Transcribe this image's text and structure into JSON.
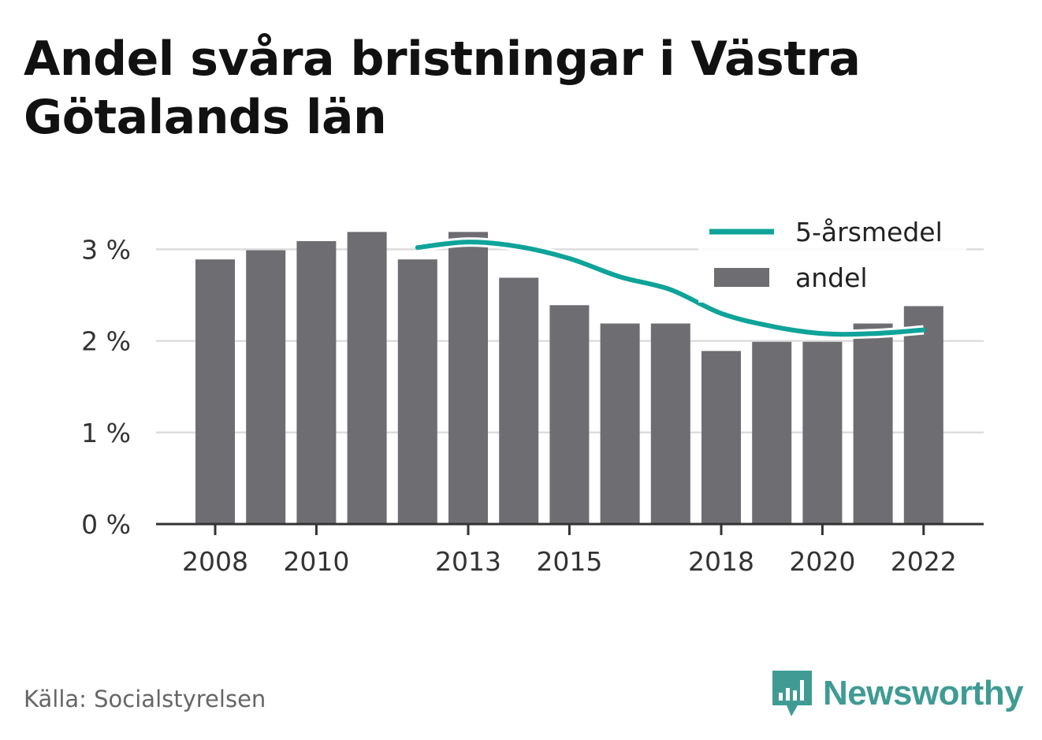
{
  "title": "Andel svåra bristningar i Västra Götalands län",
  "source": "Källa: Socialstyrelsen",
  "brand": {
    "name": "Newsworthy",
    "icon": "newsworthy-logo-icon",
    "color": "#3f9b94"
  },
  "colors": {
    "bar": "#6e6d72",
    "line": "#0fa399",
    "grid": "#dddddd",
    "axis": "#333333"
  },
  "chart_data": {
    "type": "bar",
    "x": [
      2008,
      2009,
      2010,
      2011,
      2012,
      2013,
      2014,
      2015,
      2016,
      2017,
      2018,
      2019,
      2020,
      2021,
      2022
    ],
    "x_tick_labels": [
      "2008",
      "2010",
      "2013",
      "2015",
      "2018",
      "2020",
      "2022"
    ],
    "y_tick_labels": [
      "0 %",
      "1 %",
      "2 %",
      "3 %"
    ],
    "ylim": [
      0,
      3.2
    ],
    "grid": true,
    "legend_position": "top-right",
    "series": [
      {
        "name": "andel",
        "type": "bar",
        "values": [
          2.89,
          2.99,
          3.09,
          3.19,
          2.89,
          3.19,
          2.69,
          2.39,
          2.19,
          2.19,
          1.89,
          1.99,
          1.99,
          2.19,
          2.38
        ]
      },
      {
        "name": "5-årsmedel",
        "type": "line",
        "values": [
          null,
          null,
          null,
          null,
          3.02,
          3.08,
          3.03,
          2.9,
          2.7,
          2.56,
          2.3,
          2.16,
          2.08,
          2.08,
          2.12
        ]
      }
    ]
  }
}
